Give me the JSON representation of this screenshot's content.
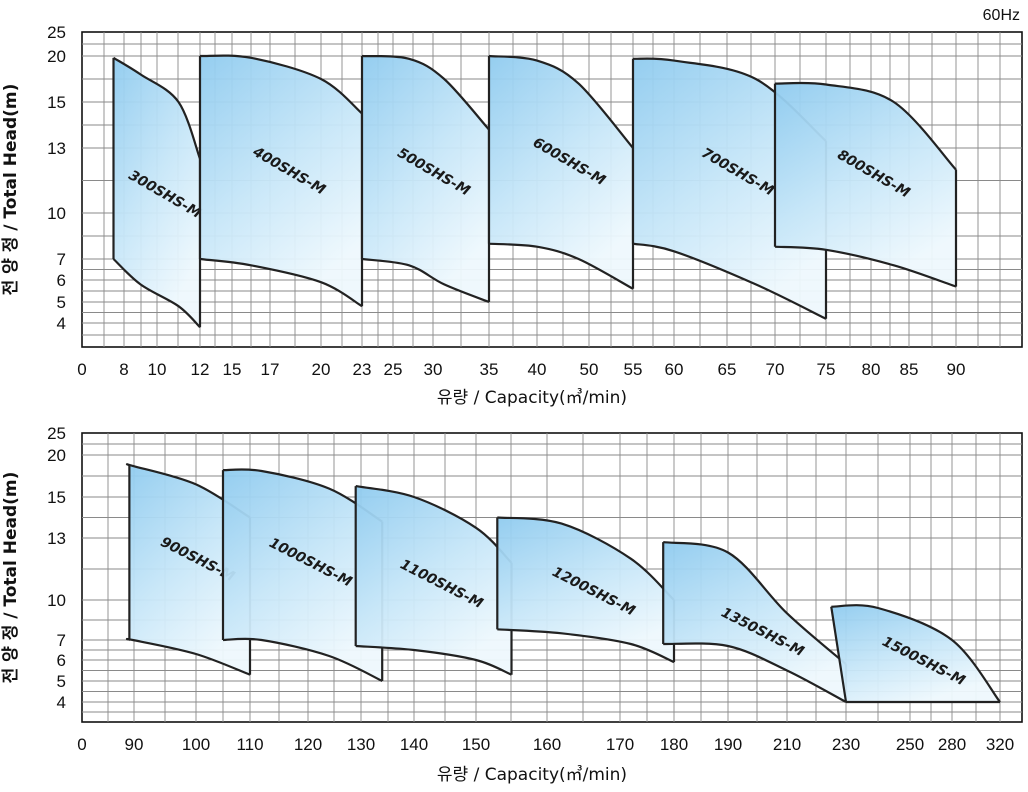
{
  "frequency_label": "60Hz",
  "chart_data": [
    {
      "type": "area",
      "title": "",
      "xlabel": "유량 / Capacity(㎥/min)",
      "ylabel": "전 양 정 / Total Head(m)",
      "x_tick_labels": [
        "0",
        "8",
        "10",
        "12",
        "15",
        "17",
        "20",
        "23",
        "25",
        "30",
        "35",
        "40",
        "50",
        "55",
        "60",
        "65",
        "70",
        "75",
        "80",
        "85",
        "90"
      ],
      "y_tick_labels": [
        "25",
        "20",
        "15",
        "13",
        "10",
        "7",
        "6",
        "5",
        "4"
      ],
      "grid": true,
      "series": [
        {
          "name": "300SHS-M",
          "x_min": 6,
          "x_max": 12,
          "upper": [
            [
              6,
              19.8
            ],
            [
              9,
              18
            ],
            [
              11,
              15
            ],
            [
              12,
              12.5
            ]
          ],
          "lower": [
            [
              6,
              7
            ],
            [
              9,
              5.8
            ],
            [
              11,
              4.8
            ],
            [
              12,
              3.8
            ]
          ]
        },
        {
          "name": "400SHS-M",
          "x_min": 12,
          "x_max": 23,
          "upper": [
            [
              12,
              20
            ],
            [
              16,
              19.8
            ],
            [
              20,
              17.5
            ],
            [
              23,
              14.5
            ]
          ],
          "lower": [
            [
              12,
              7
            ],
            [
              16,
              6.7
            ],
            [
              20,
              5.9
            ],
            [
              23,
              4.8
            ]
          ]
        },
        {
          "name": "500SHS-M",
          "x_min": 23,
          "x_max": 35,
          "upper": [
            [
              23,
              20
            ],
            [
              27,
              19.7
            ],
            [
              31,
              17.5
            ],
            [
              35,
              13.8
            ]
          ],
          "lower": [
            [
              23,
              7
            ],
            [
              27,
              6.7
            ],
            [
              31,
              5.8
            ],
            [
              35,
              5
            ]
          ]
        },
        {
          "name": "600SHS-M",
          "x_min": 35,
          "x_max": 55,
          "upper": [
            [
              35,
              20
            ],
            [
              40,
              19.5
            ],
            [
              48,
              17
            ],
            [
              55,
              13
            ]
          ],
          "lower": [
            [
              35,
              8
            ],
            [
              40,
              7.8
            ],
            [
              48,
              7
            ],
            [
              55,
              5.6
            ]
          ]
        },
        {
          "name": "700SHS-M",
          "x_min": 55,
          "x_max": 75,
          "upper": [
            [
              55,
              19.7
            ],
            [
              60,
              19.5
            ],
            [
              68,
              17.5
            ],
            [
              75,
              13.3
            ]
          ],
          "lower": [
            [
              55,
              8
            ],
            [
              60,
              7.5
            ],
            [
              68,
              5.8
            ],
            [
              75,
              4.2
            ]
          ]
        },
        {
          "name": "800SHS-M",
          "x_min": 70,
          "x_max": 90,
          "upper": [
            [
              70,
              17
            ],
            [
              75,
              16.9
            ],
            [
              83,
              15
            ],
            [
              90,
              12
            ]
          ],
          "lower": [
            [
              70,
              7.8
            ],
            [
              75,
              7.6
            ],
            [
              83,
              6.7
            ],
            [
              90,
              5.7
            ]
          ]
        }
      ]
    },
    {
      "type": "area",
      "title": "",
      "xlabel": "유량 / Capacity(㎥/min)",
      "ylabel": "전 양 정 / Total Head(m)",
      "x_tick_labels": [
        "0",
        "90",
        "100",
        "110",
        "120",
        "130",
        "140",
        "150",
        "160",
        "170",
        "180",
        "190",
        "210",
        "230",
        "250",
        "280",
        "320"
      ],
      "y_tick_labels": [
        "25",
        "20",
        "15",
        "13",
        "10",
        "7",
        "6",
        "5",
        "4"
      ],
      "grid": true,
      "series": [
        {
          "name": "900SHS-M",
          "x_min": 82,
          "x_max": 110,
          "upper": [
            [
              82,
              18.8
            ],
            [
              88,
              18.7
            ],
            [
              100,
              16.5
            ],
            [
              110,
              14
            ]
          ],
          "lower": [
            [
              82,
              7
            ],
            [
              88,
              7
            ],
            [
              100,
              6.3
            ],
            [
              110,
              5.3
            ]
          ]
        },
        {
          "name": "1000SHS-M",
          "x_min": 105,
          "x_max": 134,
          "upper": [
            [
              105,
              18.2
            ],
            [
              112,
              18.1
            ],
            [
              124,
              16
            ],
            [
              134,
              13.8
            ]
          ],
          "lower": [
            [
              105,
              7
            ],
            [
              112,
              7
            ],
            [
              124,
              6.2
            ],
            [
              134,
              5
            ]
          ]
        },
        {
          "name": "1100SHS-M",
          "x_min": 129,
          "x_max": 155,
          "upper": [
            [
              129,
              16.3
            ],
            [
              140,
              15
            ],
            [
              150,
              13.5
            ],
            [
              155,
              11.8
            ]
          ],
          "lower": [
            [
              129,
              6.7
            ],
            [
              140,
              6.5
            ],
            [
              150,
              6
            ],
            [
              155,
              5.3
            ]
          ]
        },
        {
          "name": "1200SHS-M",
          "x_min": 153,
          "x_max": 180,
          "upper": [
            [
              153,
              14
            ],
            [
              162,
              13.7
            ],
            [
              172,
              12
            ],
            [
              180,
              10
            ]
          ],
          "lower": [
            [
              153,
              7.8
            ],
            [
              162,
              7.5
            ],
            [
              172,
              6.8
            ],
            [
              180,
              5.9
            ]
          ]
        },
        {
          "name": "1350SHS-M",
          "x_min": 178,
          "x_max": 230,
          "upper": [
            [
              178,
              12.8
            ],
            [
              190,
              12.3
            ],
            [
              210,
              9
            ],
            [
              230,
              5.8
            ]
          ],
          "lower": [
            [
              178,
              6.8
            ],
            [
              190,
              6.7
            ],
            [
              210,
              5.5
            ],
            [
              230,
              4
            ]
          ]
        },
        {
          "name": "1500SHS-M",
          "x_min": 225,
          "x_max": 320,
          "upper": [
            [
              225,
              9.5
            ],
            [
              240,
              9.4
            ],
            [
              280,
              7
            ],
            [
              320,
              4
            ]
          ],
          "lower": [
            [
              230,
              4
            ],
            [
              280,
              4
            ],
            [
              320,
              4
            ]
          ]
        }
      ]
    }
  ]
}
